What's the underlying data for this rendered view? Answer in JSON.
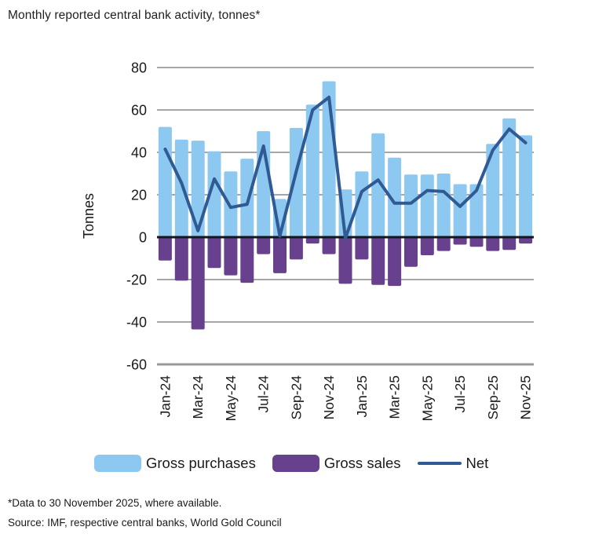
{
  "header": {
    "title": "Monthly reported central bank activity, tonnes*"
  },
  "legend": {
    "items": [
      {
        "label": "Gross purchases",
        "type": "swatch",
        "color": "#8DC8F0"
      },
      {
        "label": "Gross sales",
        "type": "swatch",
        "color": "#67418E"
      },
      {
        "label": "Net",
        "type": "line",
        "color": "#305A93"
      }
    ]
  },
  "footer": {
    "note": "*Data to 30 November 2025, where available.",
    "source": "Source: IMF, respective central banks, World Gold Council"
  },
  "colors": {
    "purchases_bar": "#8DC8F0",
    "sales_bar": "#67418E",
    "net_line": "#305A93",
    "gridline": "#A6A6A6",
    "bottom_gridline": "#999999",
    "zero_line": "#15151E",
    "text": "#1A1A1A"
  },
  "chart_data": {
    "type": "bar",
    "subtype": "bar+line combo, monthly",
    "title": "Monthly reported central bank activity, tonnes*",
    "xlabel": "",
    "ylabel": "Tonnes",
    "ylim": [
      -60,
      80
    ],
    "yticks": [
      80,
      60,
      40,
      20,
      0,
      -20,
      -40,
      -60
    ],
    "grid": true,
    "legend_position": "bottom",
    "x_tick_step": 2,
    "categories": [
      "Jan-24",
      "Feb-24",
      "Mar-24",
      "Apr-24",
      "May-24",
      "Jun-24",
      "Jul-24",
      "Aug-24",
      "Sep-24",
      "Oct-24",
      "Nov-24",
      "Dec-24",
      "Jan-25",
      "Feb-25",
      "Mar-25",
      "Apr-25",
      "May-25",
      "Jun-25",
      "Jul-25",
      "Aug-25",
      "Sep-25",
      "Oct-25",
      "Nov-25"
    ],
    "visible_x_tick_labels": [
      "Jan-24",
      "Mar-24",
      "May-24",
      "Jul-24",
      "Sep-24",
      "Nov-24",
      "Jan-25",
      "Mar-25",
      "May-25",
      "Jul-25",
      "Sep-25",
      "Nov-25"
    ],
    "series": [
      {
        "name": "Gross purchases",
        "type": "bar",
        "color": "#8DC8F0",
        "values": [
          52,
          46,
          45.5,
          40.5,
          31,
          37,
          50,
          18,
          51.5,
          62.5,
          73.5,
          22.5,
          31,
          49,
          37.5,
          29.5,
          29.5,
          30,
          25,
          25,
          44,
          56,
          48
        ]
      },
      {
        "name": "Gross sales",
        "type": "bar",
        "color": "#67418E",
        "values": [
          -11,
          -20.5,
          -43.5,
          -14.5,
          -18,
          -21.5,
          -8,
          -17,
          -10.5,
          -3,
          -8,
          -22,
          -10.5,
          -22.5,
          -23,
          -14,
          -8.5,
          -6.5,
          -3.5,
          -4.5,
          -6.5,
          -6,
          -3
        ]
      },
      {
        "name": "Net",
        "type": "line",
        "color": "#305A93",
        "values": [
          41.5,
          25.5,
          3,
          27.5,
          14,
          15.5,
          43,
          0.5,
          31,
          60,
          66,
          -0.5,
          21.5,
          27,
          16,
          16,
          22,
          21.5,
          14.5,
          22,
          41,
          51,
          44.5
        ]
      }
    ]
  }
}
